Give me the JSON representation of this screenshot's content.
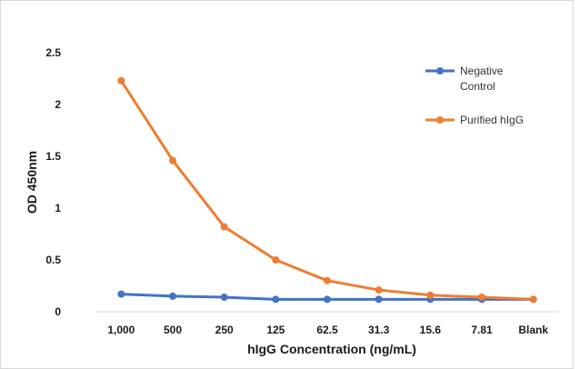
{
  "chart_data": {
    "type": "line",
    "title": "",
    "xlabel": "hIgG Concentration (ng/mL)",
    "ylabel": "OD 450nm",
    "categories": [
      "1,000",
      "500",
      "250",
      "125",
      "62.5",
      "31.3",
      "15.6",
      "7.81",
      "Blank"
    ],
    "yticks": [
      "0",
      "0.5",
      "1",
      "1.5",
      "2",
      "2.5"
    ],
    "ylim": [
      0,
      2.5
    ],
    "grid": false,
    "legend_position": "top-right",
    "series": [
      {
        "name": "Negative Control",
        "legend_lines": [
          "Negative",
          "Control"
        ],
        "color": "#4472C4",
        "values": [
          0.17,
          0.15,
          0.14,
          0.12,
          0.12,
          0.12,
          0.12,
          0.12,
          0.12
        ]
      },
      {
        "name": "Purified hIgG",
        "legend_lines": [
          "Purified hIgG"
        ],
        "color": "#ED7D31",
        "values": [
          2.23,
          1.46,
          0.82,
          0.5,
          0.3,
          0.21,
          0.16,
          0.14,
          0.12
        ]
      }
    ]
  }
}
